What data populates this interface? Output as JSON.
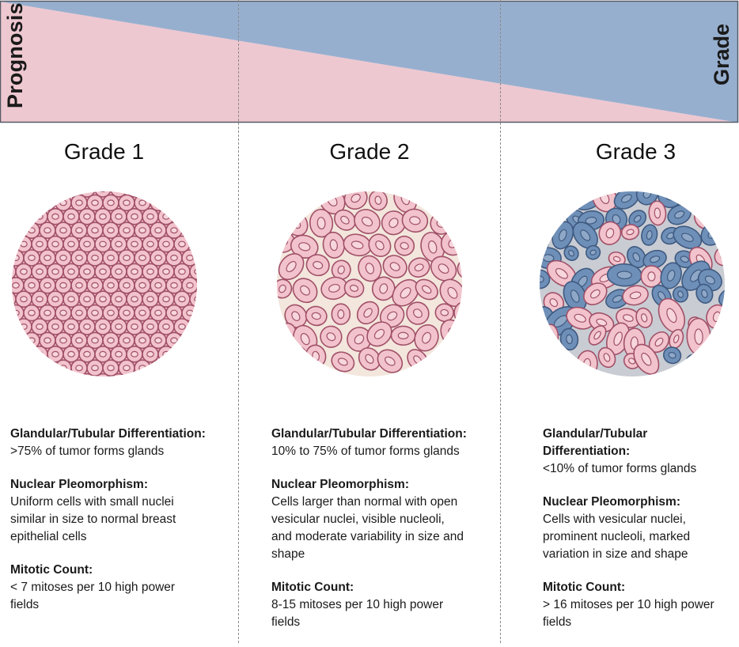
{
  "banner": {
    "left_label": "Prognosis",
    "right_label": "Grade",
    "colors": {
      "prognosis": "#eec8d0",
      "grade": "#97afcf",
      "outline": "#555a66"
    }
  },
  "columns": [
    {
      "title": "Grade 1",
      "illustration": "uniform-cells-icon",
      "sections": [
        {
          "heading": "Glandular/Tubular Differentiation:",
          "text": ">75% of tumor forms glands"
        },
        {
          "heading": "Nuclear Pleomorphism:",
          "text": "Uniform cells with small nuclei\nsimilar in size to normal breast\nepithelial cells"
        },
        {
          "heading": "Mitotic Count:",
          "text": "< 7 mitoses per 10 high power\nfields"
        }
      ]
    },
    {
      "title": "Grade 2",
      "illustration": "enlarged-cells-icon",
      "sections": [
        {
          "heading": "Glandular/Tubular Differentiation:",
          "text": "10% to 75% of tumor forms glands"
        },
        {
          "heading": "Nuclear Pleomorphism:",
          "text": "Cells larger than normal with open\nvesicular nuclei, visible nucleoli,\nand moderate variability in size and\nshape"
        },
        {
          "heading": "Mitotic Count:",
          "text": "8-15 mitoses per 10 high power\nfields"
        }
      ]
    },
    {
      "title": "Grade 3",
      "illustration": "pleomorphic-cells-icon",
      "sections": [
        {
          "heading": "Glandular/Tubular Differentiation:",
          "text": "<10% of tumor forms glands"
        },
        {
          "heading": "Nuclear Pleomorphism:",
          "text": "Cells with vesicular nuclei,\nprominent nucleoli, marked\nvariation in size and shape"
        },
        {
          "heading": "Mitotic Count:",
          "text": "> 16 mitoses per 10 high power\nfields"
        }
      ]
    }
  ],
  "colors": {
    "cell_pink": "#f2c3cc",
    "cell_outline": "#a05068",
    "cell_blue": "#6e8fb8",
    "cell_blue_outline": "#3f5a80",
    "grade1_bg": "#f2c3cc",
    "grade2_bg": "#f3e6dc",
    "grade3_bg": "#c9ccd3"
  }
}
